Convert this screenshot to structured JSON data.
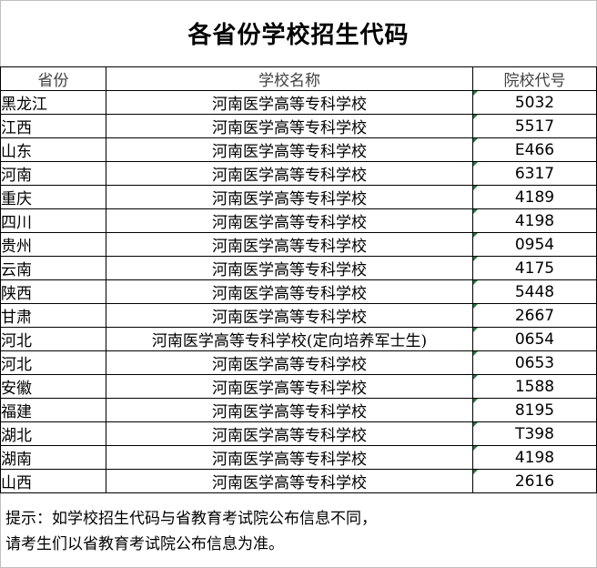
{
  "title": "各省份学校招生代码",
  "table": {
    "headers": [
      "省份",
      "学校名称",
      "院校代号"
    ],
    "rows": [
      {
        "province": "黑龙江",
        "school": "河南医学高等专科学校",
        "code": "5032"
      },
      {
        "province": "江西",
        "school": "河南医学高等专科学校",
        "code": "5517"
      },
      {
        "province": "山东",
        "school": "河南医学高等专科学校",
        "code": "E466"
      },
      {
        "province": "河南",
        "school": "河南医学高等专科学校",
        "code": "6317"
      },
      {
        "province": "重庆",
        "school": "河南医学高等专科学校",
        "code": "4189"
      },
      {
        "province": "四川",
        "school": "河南医学高等专科学校",
        "code": "4198"
      },
      {
        "province": "贵州",
        "school": "河南医学高等专科学校",
        "code": "0954"
      },
      {
        "province": "云南",
        "school": "河南医学高等专科学校",
        "code": "4175"
      },
      {
        "province": "陕西",
        "school": "河南医学高等专科学校",
        "code": "5448"
      },
      {
        "province": "甘肃",
        "school": "河南医学高等专科学校",
        "code": "2667"
      },
      {
        "province": "河北",
        "school": "河南医学高等专科学校(定向培养军士生)",
        "code": "0654"
      },
      {
        "province": "河北",
        "school": "河南医学高等专科学校",
        "code": "0653"
      },
      {
        "province": "安徽",
        "school": "河南医学高等专科学校",
        "code": "1588"
      },
      {
        "province": "福建",
        "school": "河南医学高等专科学校",
        "code": "8195"
      },
      {
        "province": "湖北",
        "school": "河南医学高等专科学校",
        "code": "T398"
      },
      {
        "province": "湖南",
        "school": "河南医学高等专科学校",
        "code": "4198"
      },
      {
        "province": "山西",
        "school": "河南医学高等专科学校",
        "code": "2616"
      }
    ]
  },
  "note": {
    "line1": "提示：如学校招生代码与省教育考试院公布信息不同，",
    "line2": "请考生们以省教育考试院公布信息为准。"
  },
  "colors": {
    "cell_marker": "#1f7a3a",
    "header_text": "#404040",
    "frame": "#bfbfbf"
  }
}
